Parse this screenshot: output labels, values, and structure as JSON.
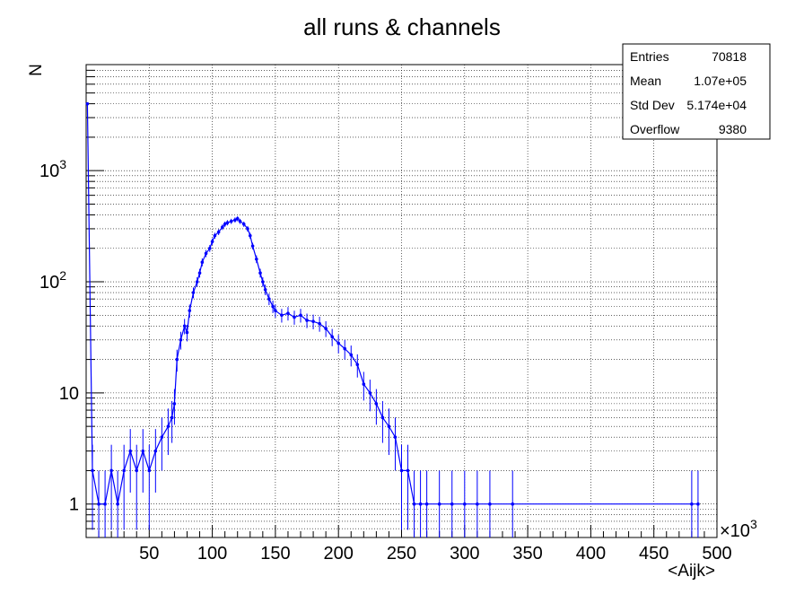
{
  "chart_data": {
    "type": "line",
    "title": "all runs & channels",
    "xlabel": "<Aijk>",
    "ylabel": "N",
    "x_multiplier_label": "×10",
    "x_multiplier_exp": "3",
    "xlim": [
      0,
      500
    ],
    "ylim": [
      0.5,
      9000
    ],
    "yscale": "log",
    "grid": true,
    "series_color": "#0000ff",
    "x_ticks": [
      "50",
      "100",
      "150",
      "200",
      "250",
      "300",
      "350",
      "400",
      "450",
      "500"
    ],
    "y_ticks": [
      {
        "value": 1,
        "base": "1",
        "exp": ""
      },
      {
        "value": 10,
        "base": "10",
        "exp": ""
      },
      {
        "value": 100,
        "base": "10",
        "exp": "2"
      },
      {
        "value": 1000,
        "base": "10",
        "exp": "3"
      }
    ],
    "x": [
      1,
      5,
      10,
      15,
      20,
      25,
      30,
      35,
      40,
      45,
      50,
      55,
      60,
      65,
      68,
      70,
      72,
      75,
      78,
      80,
      82,
      85,
      88,
      90,
      92,
      95,
      98,
      100,
      102,
      105,
      108,
      110,
      112,
      115,
      118,
      120,
      122,
      125,
      128,
      130,
      132,
      135,
      138,
      140,
      142,
      145,
      148,
      150,
      155,
      160,
      165,
      170,
      175,
      180,
      185,
      190,
      195,
      200,
      205,
      210,
      215,
      220,
      225,
      230,
      235,
      240,
      245,
      250,
      255,
      260,
      265,
      270,
      280,
      290,
      300,
      310,
      320,
      338,
      480,
      485
    ],
    "y": [
      4000,
      2,
      1,
      1,
      2,
      1,
      2,
      3,
      2,
      3,
      2,
      3,
      4,
      5,
      6,
      8,
      20,
      30,
      40,
      35,
      55,
      80,
      100,
      120,
      150,
      180,
      200,
      230,
      260,
      280,
      310,
      330,
      340,
      350,
      360,
      370,
      350,
      330,
      300,
      260,
      210,
      160,
      120,
      100,
      85,
      70,
      60,
      55,
      50,
      52,
      48,
      50,
      45,
      44,
      42,
      38,
      32,
      28,
      25,
      22,
      18,
      12,
      10,
      8,
      6,
      5,
      4,
      2,
      2,
      1,
      1,
      1,
      1,
      1,
      1,
      1,
      1,
      1,
      1,
      1
    ]
  },
  "stats": [
    {
      "label": "Entries",
      "value": "70818"
    },
    {
      "label": "Mean",
      "value": "1.07e+05"
    },
    {
      "label": "Std Dev",
      "value": "5.174e+04"
    },
    {
      "label": "Overflow",
      "value": "9380"
    }
  ]
}
